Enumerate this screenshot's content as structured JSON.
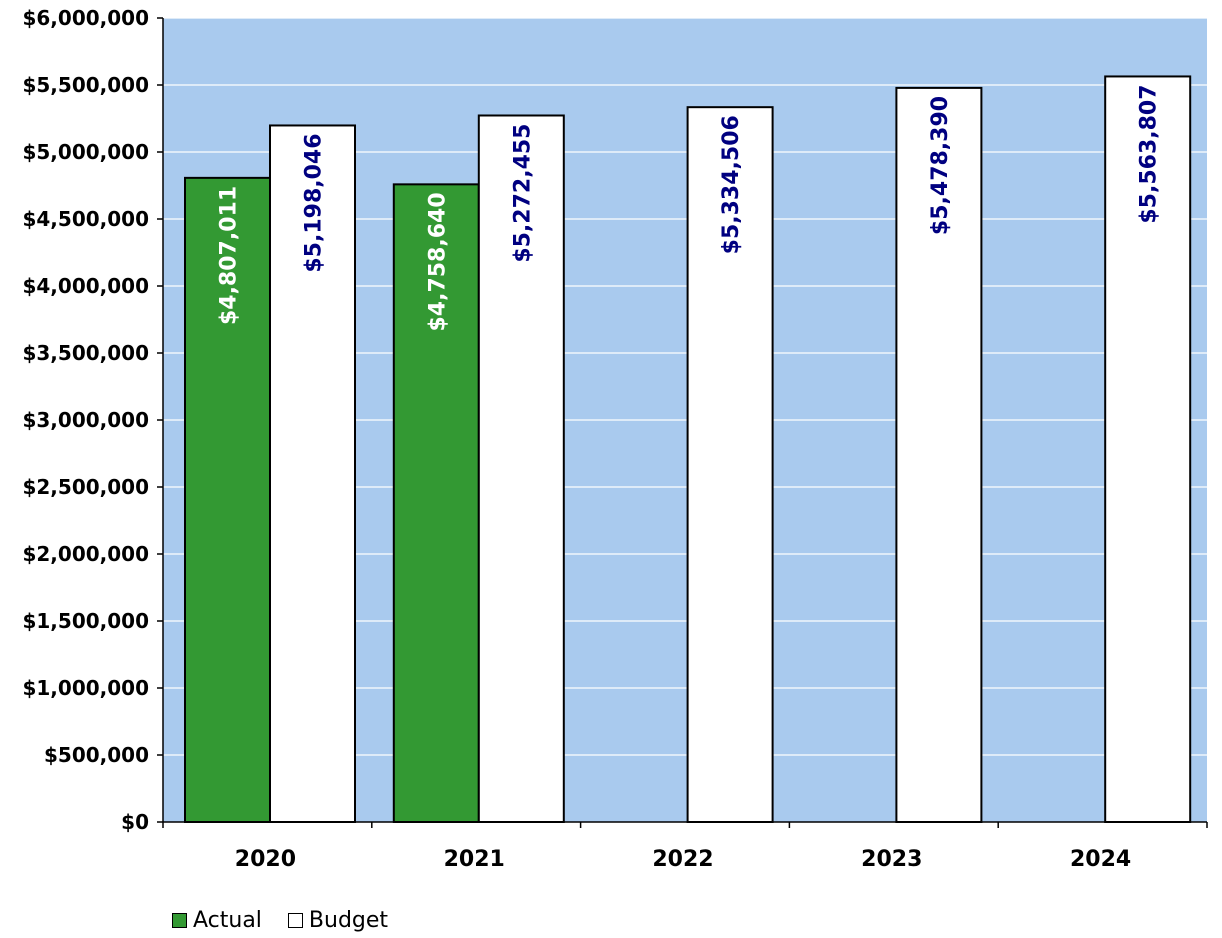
{
  "chart_data": {
    "type": "bar",
    "categories": [
      "2020",
      "2021",
      "2022",
      "2023",
      "2024"
    ],
    "series": [
      {
        "name": "Actual",
        "values": [
          4807011,
          4758640,
          null,
          null,
          null
        ],
        "labels": [
          "$4,807,011",
          "$4,758,640",
          "",
          "",
          ""
        ],
        "color": "#339933",
        "label_color": "#ffffff"
      },
      {
        "name": "Budget",
        "values": [
          5198046,
          5272455,
          5334506,
          5478390,
          5563807
        ],
        "labels": [
          "$5,198,046",
          "$5,272,455",
          "$5,334,506",
          "$5,478,390",
          "$5,563,807"
        ],
        "color": "#ffffff",
        "label_color": "#000080"
      }
    ],
    "ylim": [
      0,
      6000000
    ],
    "y_ticks": [
      0,
      500000,
      1000000,
      1500000,
      2000000,
      2500000,
      3000000,
      3500000,
      4000000,
      4500000,
      5000000,
      5500000,
      6000000
    ],
    "y_tick_labels": [
      "$0",
      "$500,000",
      "$1,000,000",
      "$1,500,000",
      "$2,000,000",
      "$2,500,000",
      "$3,000,000",
      "$3,500,000",
      "$4,000,000",
      "$4,500,000",
      "$5,000,000",
      "$5,500,000",
      "$6,000,000"
    ],
    "grid": true,
    "legend_position": "bottom-left",
    "plot_background": "#a9caee",
    "gridline_color": "#ffffff"
  }
}
